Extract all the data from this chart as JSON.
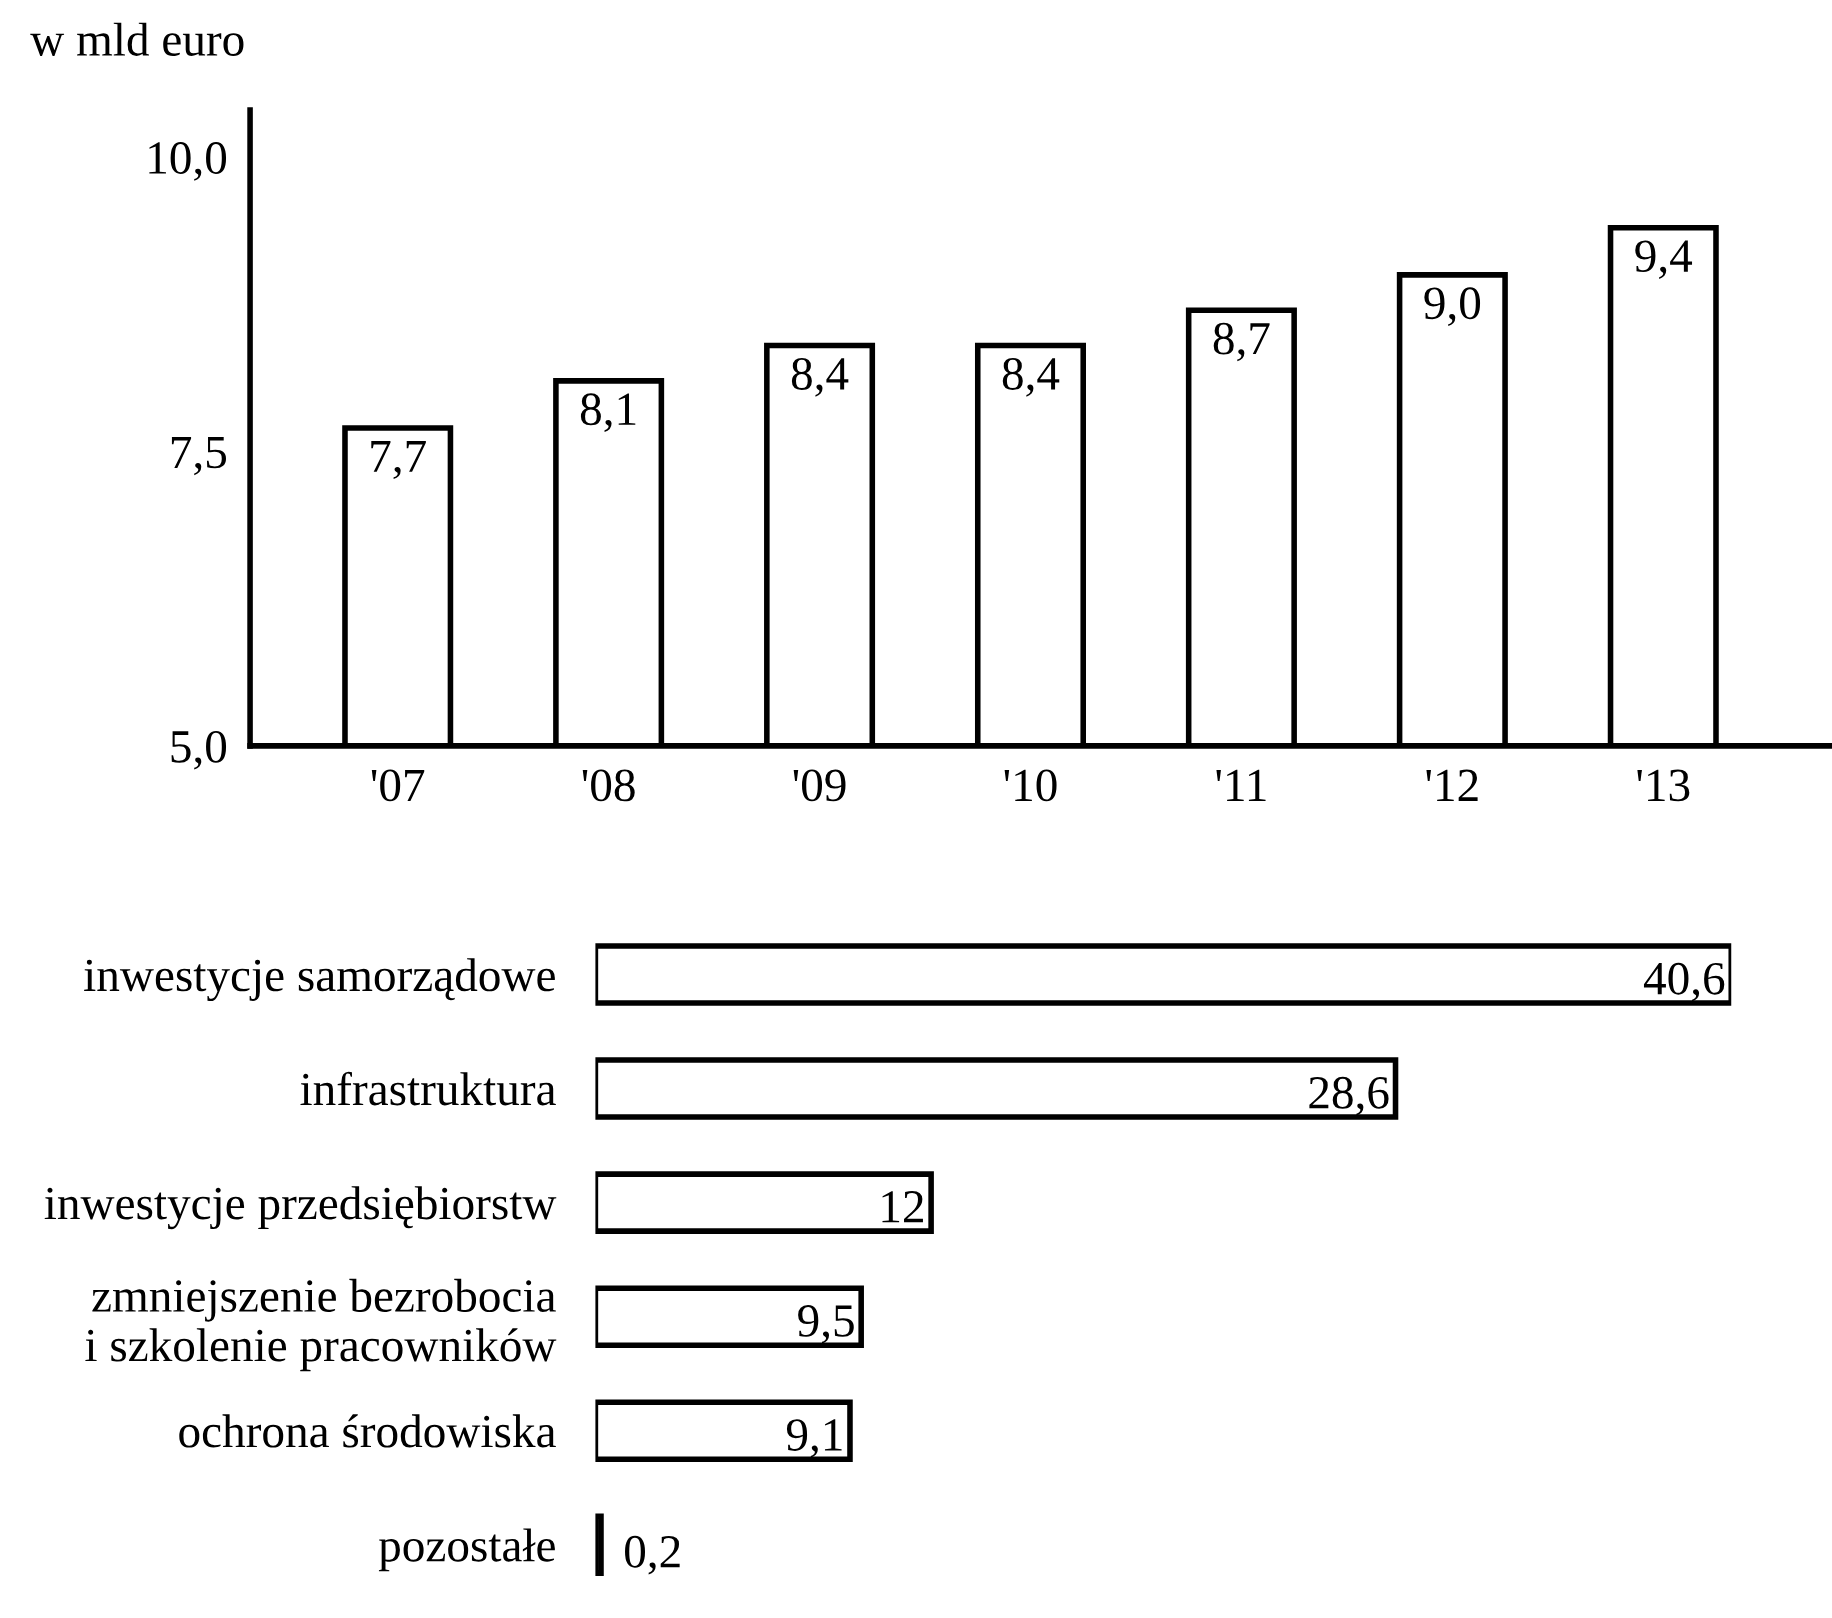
{
  "chart_data": [
    {
      "type": "bar",
      "ylabel": "w mld euro",
      "categories": [
        "'07",
        "'08",
        "'09",
        "'10",
        "'11",
        "'12",
        "'13"
      ],
      "values": [
        7.7,
        8.1,
        8.4,
        8.4,
        8.7,
        9.0,
        9.4
      ],
      "value_labels": [
        "7,7",
        "8,1",
        "8,4",
        "8,4",
        "8,7",
        "9,0",
        "9,4"
      ],
      "color": "#ffffff",
      "ylim": [
        5,
        10.4
      ],
      "yticks": [
        {
          "value": 5,
          "label": "5,0"
        },
        {
          "value": 7.5,
          "label": "7,5"
        },
        {
          "value": 10,
          "label": "10,0"
        }
      ],
      "grid": false,
      "legend": false
    },
    {
      "type": "bar",
      "orientation": "horizontal",
      "categories": [
        "inwestycje samorządowe",
        "infrastruktura",
        "inwestycje przedsiębiorstw",
        "zmniejszenie bezrobocia\ni szkolenie pracowników",
        "ochrona środowiska",
        "pozostałe"
      ],
      "values": [
        40.6,
        28.6,
        12,
        9.5,
        9.1,
        0.2
      ],
      "value_labels": [
        "40,6",
        "28,6",
        "12",
        "9,5",
        "9,1",
        "0,2"
      ],
      "color": "#ffffff",
      "grid": false,
      "legend": false
    }
  ]
}
